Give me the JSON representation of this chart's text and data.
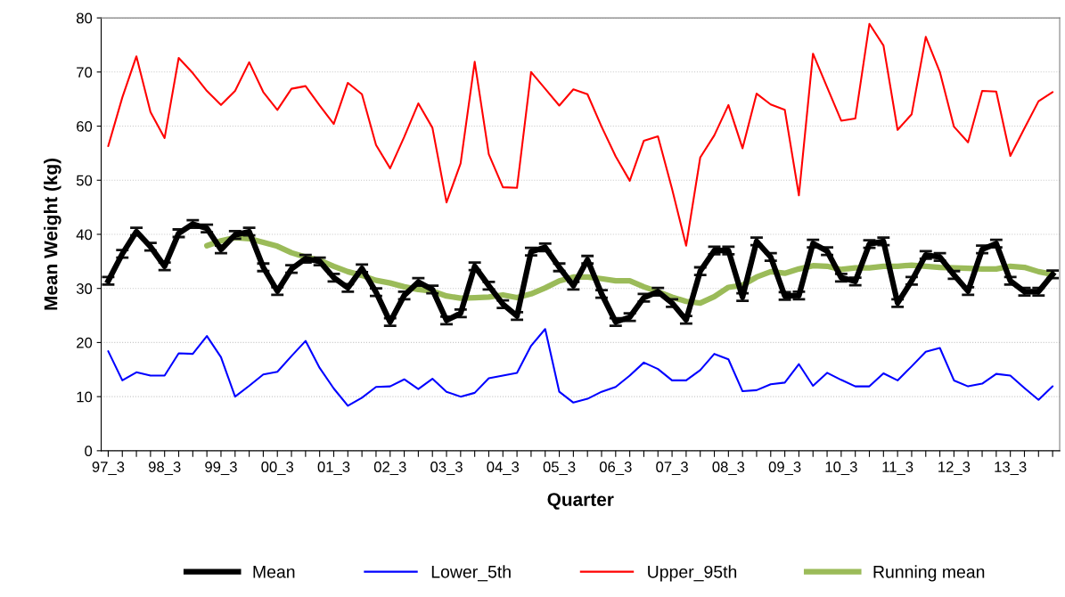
{
  "chart_data": {
    "type": "line",
    "xlabel": "Quarter",
    "ylabel": "Mean Weight (kg)",
    "categories": [
      "97_3",
      null,
      null,
      null,
      "98_3",
      null,
      null,
      null,
      "99_3",
      null,
      null,
      null,
      "00_3",
      null,
      null,
      null,
      "01_3",
      null,
      null,
      null,
      "02_3",
      null,
      null,
      null,
      "03_3",
      null,
      null,
      null,
      "04_3",
      null,
      null,
      null,
      "05_3",
      null,
      null,
      null,
      "06_3",
      null,
      null,
      null,
      "07_3",
      null,
      null,
      null,
      "08_3",
      null,
      null,
      null,
      "09_3",
      null,
      null,
      null,
      "10_3",
      null,
      null,
      null,
      "11_3",
      null,
      null,
      null,
      "12_3",
      null,
      null,
      null,
      "13_3",
      null,
      null,
      null
    ],
    "ylim": [
      0,
      80
    ],
    "yticks": [
      0,
      10,
      20,
      30,
      40,
      50,
      60,
      70,
      80
    ],
    "grid": "y",
    "legend": "bottom",
    "series": [
      {
        "name": "Mean",
        "color": "#000000",
        "values": [
          31.4,
          36.4,
          40.5,
          37.7,
          34.1,
          40.2,
          41.9,
          41.1,
          37.2,
          39.9,
          40.5,
          33.9,
          29.5,
          33.6,
          35.5,
          35.0,
          32.0,
          30.1,
          33.7,
          29.3,
          23.8,
          28.7,
          31.2,
          29.8,
          24.1,
          25.4,
          34.1,
          30.5,
          27.1,
          24.9,
          36.8,
          37.6,
          33.9,
          30.5,
          35.3,
          29.0,
          23.8,
          24.7,
          28.3,
          29.4,
          27.3,
          24.2,
          33.2,
          37.0,
          37.0,
          28.4,
          38.7,
          35.8,
          28.6,
          28.7,
          38.3,
          36.9,
          32.0,
          31.3,
          38.2,
          38.7,
          27.3,
          31.4,
          36.2,
          35.8,
          32.5,
          29.5,
          37.2,
          38.3,
          31.4,
          29.4,
          29.4,
          32.6
        ],
        "errors": [
          0.7,
          0.7,
          0.7,
          0.7,
          0.7,
          0.7,
          0.7,
          0.7,
          0.7,
          0.7,
          0.7,
          0.7,
          0.7,
          0.7,
          0.7,
          0.7,
          0.7,
          0.7,
          0.7,
          0.7,
          0.7,
          0.7,
          0.7,
          0.7,
          0.7,
          0.7,
          0.7,
          0.7,
          0.7,
          0.7,
          0.7,
          0.7,
          0.7,
          0.7,
          0.7,
          0.7,
          0.7,
          0.7,
          0.7,
          0.7,
          0.7,
          0.7,
          0.7,
          0.7,
          0.7,
          0.7,
          0.7,
          0.7,
          0.7,
          0.7,
          0.7,
          0.7,
          0.7,
          0.7,
          0.7,
          0.7,
          0.7,
          0.7,
          0.7,
          0.7,
          0.7,
          0.7,
          0.7,
          0.7,
          0.7,
          0.7,
          0.7,
          0.7
        ]
      },
      {
        "name": "Lower_5th",
        "color": "#0000ff",
        "values": [
          18.4,
          13.0,
          14.5,
          13.9,
          13.9,
          18.0,
          17.9,
          21.2,
          17.3,
          10.0,
          12.0,
          14.1,
          14.6,
          17.5,
          20.3,
          15.3,
          11.5,
          8.3,
          9.8,
          11.8,
          11.9,
          13.2,
          11.4,
          13.3,
          10.9,
          10.0,
          10.7,
          13.4,
          13.9,
          14.4,
          19.4,
          22.5,
          10.9,
          8.9,
          9.6,
          10.9,
          11.8,
          13.9,
          16.3,
          15.1,
          13.0,
          13.0,
          14.9,
          17.9,
          16.9,
          11.0,
          11.2,
          12.3,
          12.6,
          16.0,
          12.0,
          14.4,
          13.1,
          11.9,
          11.9,
          14.3,
          13.0,
          15.6,
          18.3,
          19.0,
          13.0,
          11.9,
          12.4,
          14.2,
          13.9,
          11.6,
          9.4,
          11.9
        ]
      },
      {
        "name": "Upper_95th",
        "color": "#ff0000",
        "values": [
          56.3,
          65.3,
          72.9,
          62.6,
          57.8,
          72.6,
          69.8,
          66.5,
          63.9,
          66.5,
          71.8,
          66.3,
          63.0,
          66.9,
          67.4,
          63.8,
          60.4,
          68.0,
          65.9,
          56.5,
          52.2,
          58.0,
          64.2,
          59.7,
          45.9,
          53.1,
          71.9,
          54.8,
          48.7,
          48.6,
          70.0,
          66.9,
          63.8,
          66.8,
          65.9,
          59.9,
          54.4,
          49.9,
          57.3,
          58.1,
          48.4,
          37.9,
          54.2,
          58.3,
          63.9,
          55.9,
          66.0,
          64.0,
          63.0,
          47.2,
          73.4,
          67.2,
          61.0,
          61.4,
          78.9,
          74.9,
          59.3,
          62.2,
          76.5,
          70.0,
          59.9,
          57.0,
          66.5,
          66.4,
          54.5,
          59.6,
          64.6,
          66.3
        ]
      },
      {
        "name": "Running mean",
        "color": "#9bbb59",
        "values": [
          null,
          null,
          null,
          null,
          null,
          null,
          null,
          37.9,
          38.8,
          39.4,
          39.2,
          38.5,
          37.8,
          36.6,
          35.8,
          35.2,
          34.1,
          33.1,
          32.4,
          31.5,
          31.0,
          30.3,
          29.8,
          29.5,
          28.6,
          28.2,
          28.3,
          28.4,
          28.8,
          28.3,
          29.0,
          30.1,
          31.4,
          32.1,
          32.1,
          31.8,
          31.4,
          31.4,
          30.3,
          29.4,
          28.4,
          27.6,
          27.3,
          28.5,
          30.2,
          30.6,
          32.1,
          33.1,
          32.8,
          33.6,
          34.2,
          34.1,
          33.5,
          33.8,
          33.8,
          34.1,
          34.1,
          34.3,
          34.1,
          33.9,
          33.8,
          33.7,
          33.6,
          33.6,
          34.1,
          33.9,
          33.1,
          32.6
        ]
      }
    ]
  }
}
